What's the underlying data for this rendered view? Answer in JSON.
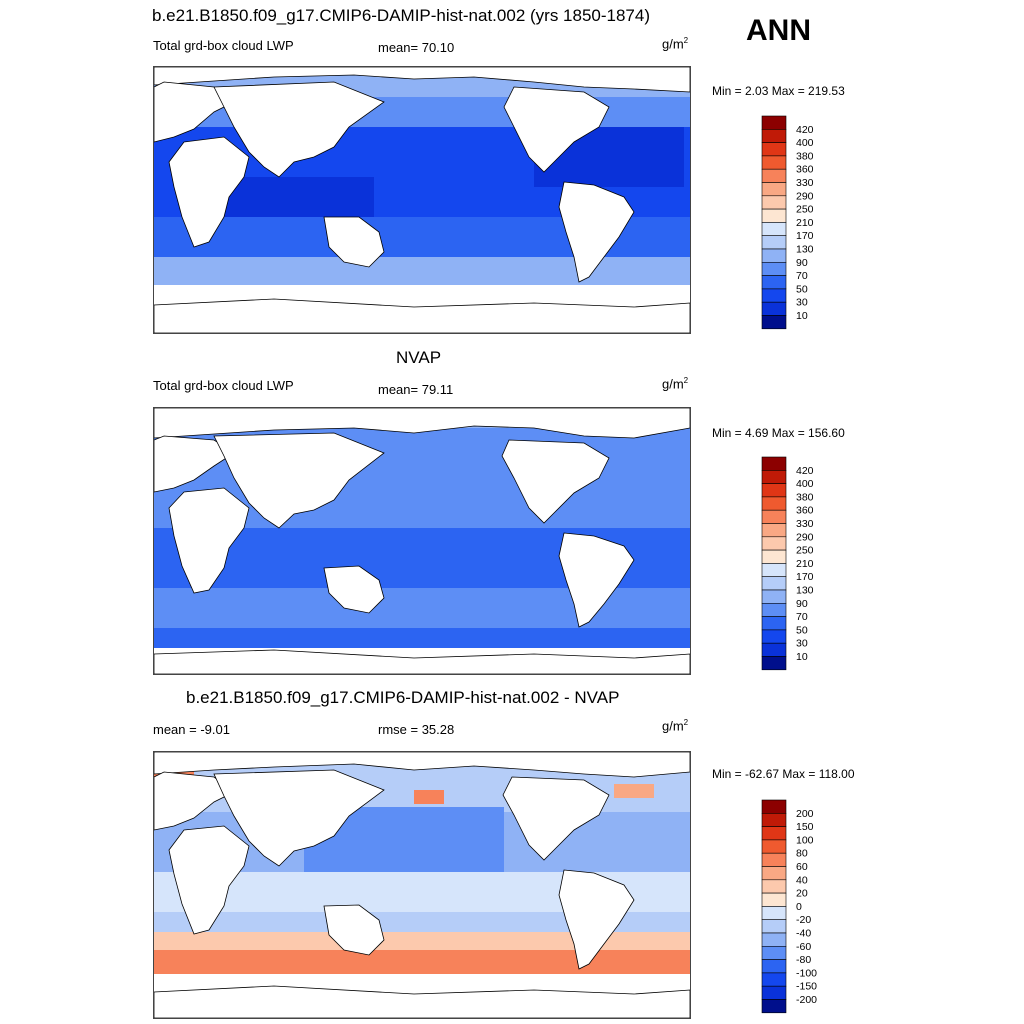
{
  "season": "ANN",
  "colors": {
    "abs_scale": [
      "#000f8c",
      "#0a32d9",
      "#1447ee",
      "#2c64f2",
      "#5d8ef5",
      "#8fb2f5",
      "#b5cdf8",
      "#d6e5fb",
      "#fde6d2",
      "#fcc9ad",
      "#f9a884",
      "#f7825a",
      "#ef5a2f",
      "#e03616",
      "#c01a07",
      "#8c0000"
    ],
    "diff_scale": [
      "#000f8c",
      "#0a32d9",
      "#1447ee",
      "#2c64f2",
      "#5d8ef5",
      "#8fb2f5",
      "#b5cdf8",
      "#d6e5fb",
      "#fde6d2",
      "#fcc9ad",
      "#f9a884",
      "#f7825a",
      "#ef5a2f",
      "#e03616",
      "#c01a07",
      "#8c0000"
    ],
    "land": "#ffffff",
    "coast": "#000000"
  },
  "panels": [
    {
      "id": "model",
      "title": "b.e21.B1850.f09_g17.CMIP6-DAMIP-hist-nat.002 (yrs 1850-1874)",
      "left_label": "Total grd-box cloud LWP",
      "stat_label": "mean=  70.10",
      "units": "g/m",
      "units_sup": "2",
      "minmax": "Min =   2.03 Max = 219.53",
      "colorbar_labels": [
        "420",
        "400",
        "380",
        "360",
        "330",
        "290",
        "250",
        "210",
        "170",
        "130",
        "90",
        "70",
        "50",
        "30",
        "10"
      ]
    },
    {
      "id": "obs",
      "title": "NVAP",
      "left_label": "Total grd-box cloud LWP",
      "stat_label": "mean=  79.11",
      "units": "g/m",
      "units_sup": "2",
      "minmax": "Min =   4.69 Max = 156.60",
      "colorbar_labels": [
        "420",
        "400",
        "380",
        "360",
        "330",
        "290",
        "250",
        "210",
        "170",
        "130",
        "90",
        "70",
        "50",
        "30",
        "10"
      ]
    },
    {
      "id": "diff",
      "title": "b.e21.B1850.f09_g17.CMIP6-DAMIP-hist-nat.002 - NVAP",
      "left_label": "mean =  -9.01",
      "stat_label": "rmse =  35.28",
      "units": "g/m",
      "units_sup": "2",
      "minmax": "Min = -62.67 Max = 118.00",
      "colorbar_labels": [
        "200",
        "150",
        "100",
        "80",
        "60",
        "40",
        "20",
        "0",
        "-20",
        "-40",
        "-60",
        "-80",
        "-100",
        "-150",
        "-200"
      ]
    }
  ]
}
